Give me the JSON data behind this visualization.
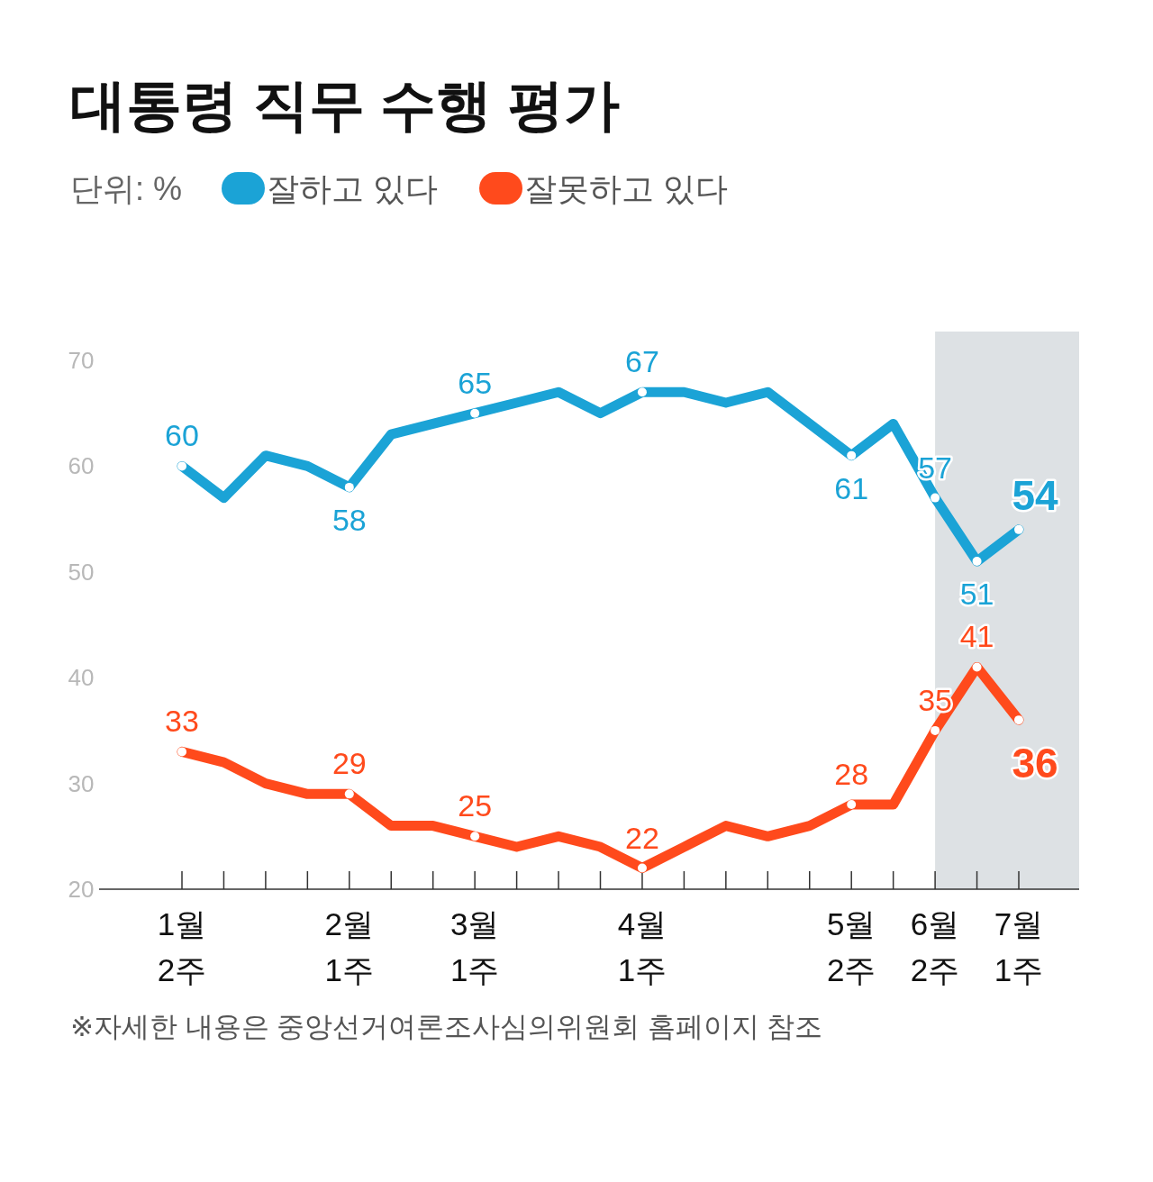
{
  "chart_data": {
    "type": "line",
    "title": "대통령 직무 수행 평가",
    "ylabel": "단위: %",
    "categories": [
      "1월\n2주",
      null,
      null,
      null,
      "2월\n1주",
      null,
      null,
      "3월\n1주",
      null,
      null,
      null,
      "4월\n1주",
      null,
      null,
      null,
      null,
      "5월\n2주",
      null,
      "6월\n2주",
      null,
      "7월\n1주"
    ],
    "series": [
      {
        "name": "잘하고 있다",
        "color": "#1ba3d6",
        "values": [
          60,
          57,
          61,
          60,
          58,
          63,
          64,
          65,
          66,
          67,
          65,
          67,
          67,
          66,
          67,
          64,
          61,
          64,
          57,
          51,
          54
        ],
        "value_labels": [
          "60",
          null,
          null,
          null,
          "58",
          null,
          null,
          "65",
          null,
          null,
          null,
          "67",
          null,
          null,
          null,
          null,
          "61",
          null,
          "57",
          "51",
          "54"
        ]
      },
      {
        "name": "잘못하고 있다",
        "color": "#ff4a1c",
        "values": [
          33,
          32,
          30,
          29,
          29,
          26,
          26,
          25,
          24,
          25,
          24,
          22,
          24,
          26,
          25,
          26,
          28,
          28,
          35,
          41,
          36
        ],
        "value_labels": [
          "33",
          null,
          null,
          null,
          "29",
          null,
          null,
          "25",
          null,
          null,
          null,
          "22",
          null,
          null,
          null,
          null,
          "28",
          null,
          "35",
          "41",
          "36"
        ]
      }
    ],
    "ylim": [
      20,
      70
    ],
    "yticks": [
      20,
      30,
      40,
      50,
      60,
      70
    ],
    "grid": false,
    "legend": "top left",
    "line_style": "solid",
    "bands": [
      {
        "axis": "x",
        "from": "6월\n2주",
        "to": "7월\n1주",
        "color": "#dde1e4"
      }
    ],
    "annotations": [
      "※자세한 내용은 중앙선거여론조사심의위원회 홈페이지 참조"
    ]
  }
}
